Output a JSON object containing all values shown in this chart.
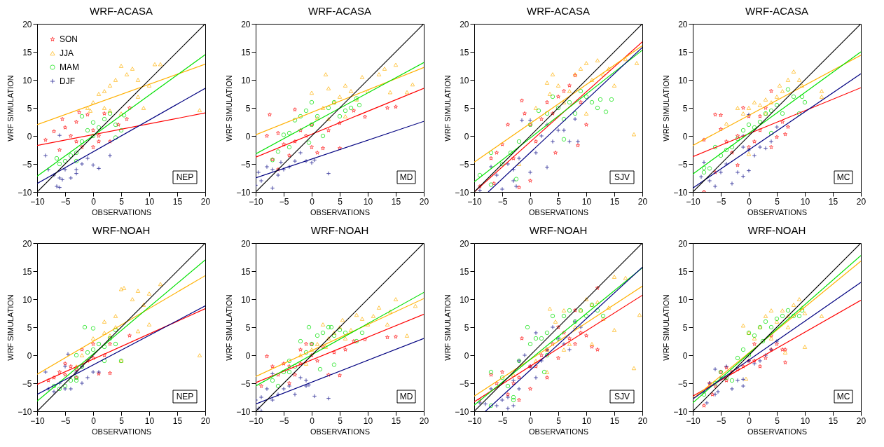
{
  "chart_data": [
    {
      "type": "scatter",
      "title": "WRF-ACASA",
      "xlabel": "OBSERVATIONS",
      "ylabel": "WRF SIMULATION",
      "xlim": [
        -10,
        20
      ],
      "ylim": [
        -10,
        20
      ],
      "xticks": [
        -10,
        -5,
        0,
        5,
        10,
        15,
        20
      ],
      "yticks": [
        -10,
        -5,
        0,
        5,
        10,
        15,
        20
      ],
      "legend": "top left",
      "annotations": [
        "NEP"
      ],
      "series": [
        {
          "name": "SON",
          "color": "#ff0000",
          "marker": "star",
          "x": [
            -8.5,
            -7,
            -5.5,
            -5,
            -4,
            -3,
            -3,
            -2,
            -1,
            0,
            0,
            1,
            2,
            -6,
            3,
            4.5,
            6,
            6.5,
            -2.5,
            1
          ],
          "values": [
            -0.7,
            0.8,
            3,
            1.5,
            0,
            2.5,
            -1,
            -2,
            3.8,
            -2,
            1,
            -1,
            4,
            -2.5,
            -1,
            2,
            3,
            5,
            4.2,
            0
          ]
        },
        {
          "name": "JJA",
          "color": "#ffb000",
          "marker": "triangle",
          "x": [
            -1,
            0,
            1,
            2,
            2,
            3,
            3,
            4,
            5,
            6,
            7,
            8,
            8,
            9,
            10,
            11,
            12,
            19,
            5,
            -0.5
          ],
          "values": [
            5,
            6,
            7.5,
            8,
            5,
            9,
            4.5,
            10,
            12.5,
            11,
            12,
            10,
            7,
            5,
            9,
            12.8,
            12.8,
            4.6,
            4,
            4.5
          ]
        },
        {
          "name": "MAM",
          "color": "#00e000",
          "marker": "circle",
          "x": [
            -6.5,
            -6,
            -5,
            -4,
            -3,
            -2,
            -2,
            -1,
            0,
            1,
            2,
            3,
            4,
            4,
            5,
            5.5,
            -3,
            0
          ],
          "values": [
            -4,
            -5,
            -4.5,
            -3.5,
            -3,
            -1,
            3.5,
            1,
            2.4,
            1.5,
            3,
            4,
            2,
            -0.3,
            1,
            3.7,
            -4.5,
            0
          ]
        },
        {
          "name": "DJF",
          "color": "#000080",
          "marker": "cross",
          "x": [
            -8.5,
            -8,
            -7,
            -6.5,
            -6,
            -5.5,
            -5,
            -4,
            -3,
            -2,
            -1,
            0,
            1,
            3,
            -6,
            -3,
            -6
          ],
          "values": [
            -3.5,
            -6,
            -7,
            -9,
            -7.5,
            -7.8,
            -6,
            -7.5,
            -6,
            -5,
            -4,
            -5.2,
            -5.8,
            -3.5,
            0.1,
            -6.7,
            -9.2
          ]
        },
        {
          "type": "line",
          "color": "#ff0000",
          "x": [
            -10,
            20
          ],
          "values": [
            -1.7,
            4.1
          ]
        },
        {
          "type": "line",
          "color": "#ffb000",
          "x": [
            -10,
            20
          ],
          "values": [
            2,
            12.8
          ]
        },
        {
          "type": "line",
          "color": "#00e000",
          "x": [
            -10,
            20
          ],
          "values": [
            -7.2,
            14.5
          ]
        },
        {
          "type": "line",
          "color": "#000080",
          "x": [
            -10,
            20
          ],
          "values": [
            -8.5,
            8.5
          ]
        },
        {
          "type": "line",
          "color": "#000000",
          "x": [
            -10,
            20
          ],
          "values": [
            -10,
            20
          ]
        }
      ]
    },
    {
      "type": "scatter",
      "title": "WRF-ACASA",
      "xlabel": "OBSERVATIONS",
      "ylabel": "WRF SIMULATION",
      "xlim": [
        -10,
        20
      ],
      "ylim": [
        -10,
        20
      ],
      "xticks": [
        -10,
        -5,
        0,
        5,
        10,
        15,
        20
      ],
      "yticks": [
        -10,
        -5,
        0,
        5,
        10,
        15,
        20
      ],
      "annotations": [
        "MD"
      ],
      "series": [
        {
          "color": "#ff0000",
          "marker": "star",
          "x": [
            -7.5,
            -8,
            -6,
            -5,
            -4,
            -3,
            -3,
            -2,
            -1,
            0,
            0,
            1,
            2,
            3,
            5,
            5,
            7.5,
            9.5,
            13.5,
            15,
            -6,
            -7
          ],
          "values": [
            3.8,
            0,
            0.5,
            -1.5,
            -3.5,
            4.7,
            -1,
            1,
            0,
            2,
            -2,
            -3,
            -2.2,
            1,
            -2.2,
            2.3,
            4.5,
            3.4,
            5,
            5.2,
            -6,
            -4.2
          ]
        },
        {
          "color": "#ffb000",
          "marker": "triangle",
          "x": [
            0,
            1,
            2,
            2.5,
            3,
            4,
            5,
            6,
            7,
            8,
            9,
            10,
            12,
            13,
            15,
            17,
            18,
            14,
            6,
            3
          ],
          "values": [
            7.7,
            3.2,
            5,
            11,
            8.5,
            6,
            7,
            9,
            8,
            6.5,
            10.5,
            8,
            11,
            12,
            12.7,
            7.8,
            9.2,
            7.8,
            3.5,
            3
          ]
        },
        {
          "color": "#00e000",
          "marker": "circle",
          "x": [
            -7,
            -6,
            -5,
            -4,
            -3,
            -2,
            -1,
            0,
            0,
            1,
            2,
            3,
            4,
            5,
            6,
            7,
            8,
            8.5,
            -0.5,
            -4
          ],
          "values": [
            -4.3,
            -2.8,
            0.2,
            0.5,
            2.8,
            3.5,
            4.5,
            6,
            2,
            3.5,
            0,
            5,
            6,
            3.5,
            4.5,
            5,
            6.7,
            5.5,
            -1.2,
            -2
          ]
        },
        {
          "color": "#000080",
          "marker": "cross",
          "x": [
            -10,
            -9.5,
            -9,
            -8,
            -7,
            -7,
            -6,
            -5,
            -4,
            -3,
            -2,
            -1,
            0,
            0.5,
            3,
            -5.5
          ],
          "values": [
            -8.8,
            -6.5,
            -8,
            -5.5,
            -6,
            -9.3,
            -7,
            -6,
            -5.5,
            -4.5,
            -3,
            -4.5,
            -4.8,
            -4.3,
            -6.7,
            -4.7
          ]
        },
        {
          "type": "line",
          "color": "#ff0000",
          "x": [
            -10,
            20
          ],
          "values": [
            -3.8,
            8.5
          ]
        },
        {
          "type": "line",
          "color": "#ffb000",
          "x": [
            -10,
            20
          ],
          "values": [
            0.2,
            12.2
          ]
        },
        {
          "type": "line",
          "color": "#00e000",
          "x": [
            -10,
            20
          ],
          "values": [
            -3.2,
            13.1
          ]
        },
        {
          "type": "line",
          "color": "#000080",
          "x": [
            -10,
            20
          ],
          "values": [
            -7.5,
            2.6
          ]
        },
        {
          "type": "line",
          "color": "#000000",
          "x": [
            -10,
            20
          ],
          "values": [
            -10,
            20
          ]
        }
      ]
    },
    {
      "type": "scatter",
      "title": "WRF-ACASA",
      "xlabel": "OBSERVATIONS",
      "ylabel": "WRF SIMULATION",
      "xlim": [
        -10,
        20
      ],
      "ylim": [
        -10,
        20
      ],
      "xticks": [
        -10,
        -5,
        0,
        5,
        10,
        15,
        20
      ],
      "yticks": [
        -10,
        -5,
        0,
        5,
        10,
        15,
        20
      ],
      "annotations": [
        "SJV"
      ],
      "series": [
        {
          "color": "#ff0000",
          "marker": "star",
          "x": [
            -9,
            -7,
            -6.5,
            -6,
            -5,
            -4,
            -3,
            -1.5,
            -1,
            0,
            0,
            1,
            2,
            3,
            4,
            5,
            6,
            7,
            8,
            9,
            10,
            4.5,
            8.5,
            -2
          ],
          "values": [
            -9,
            -4,
            -8.5,
            -3,
            -1.5,
            2,
            -4,
            6.3,
            4,
            -8,
            2,
            -1,
            3,
            6,
            4,
            7,
            8,
            9,
            10.8,
            6,
            2,
            -3,
            -1.7,
            -9.2
          ]
        },
        {
          "color": "#ffb000",
          "marker": "triangle",
          "x": [
            -2,
            1,
            3,
            3.5,
            4,
            5,
            6,
            7,
            8,
            9,
            10,
            11,
            12,
            13,
            14,
            15,
            17,
            19,
            18.5,
            10
          ],
          "values": [
            -5,
            5,
            9.5,
            7.5,
            11,
            9,
            6,
            8,
            11,
            12,
            13,
            10,
            13.5,
            11,
            12,
            9,
            13.7,
            13,
            0.3,
            4
          ]
        },
        {
          "color": "#00e000",
          "marker": "circle",
          "x": [
            -9,
            -7,
            -7,
            -5,
            -3.5,
            -2.5,
            -2,
            0,
            1.5,
            3,
            4,
            5,
            6,
            7,
            8,
            9,
            10,
            11,
            12,
            12.5,
            13.5,
            14.5,
            6
          ],
          "values": [
            -7,
            -3,
            -8.7,
            -5,
            -3,
            -7.7,
            -1,
            2,
            4.5,
            4,
            7,
            5,
            3,
            6,
            4,
            8,
            7,
            6,
            5,
            6.5,
            4.3,
            6.5,
            -0.6
          ]
        },
        {
          "color": "#000080",
          "marker": "cross",
          "x": [
            -9,
            -7,
            -6,
            -5,
            -4,
            -3,
            -2.5,
            -2,
            0,
            0,
            -1.5,
            1,
            2,
            3,
            4,
            5,
            6,
            7,
            8,
            8.5,
            3,
            -3
          ],
          "values": [
            -9.7,
            -5.5,
            -7,
            -9.5,
            -5,
            -6,
            -9,
            -4,
            -6.5,
            2.8,
            2.8,
            -3,
            0,
            -5.6,
            -1,
            1,
            1,
            -1,
            3,
            -1,
            2,
            -8
          ]
        },
        {
          "type": "line",
          "color": "#ff0000",
          "x": [
            -10,
            20
          ],
          "values": [
            -10,
            16.8
          ]
        },
        {
          "type": "line",
          "color": "#ffb000",
          "x": [
            -10,
            20
          ],
          "values": [
            -4.7,
            16.1
          ]
        },
        {
          "type": "line",
          "color": "#00e000",
          "x": [
            -10,
            20
          ],
          "values": [
            -8.2,
            15.3
          ]
        },
        {
          "type": "line",
          "color": "#000080",
          "x": [
            -7.5,
            20
          ],
          "values": [
            -10,
            15.8
          ]
        },
        {
          "type": "line",
          "color": "#000000",
          "x": [
            -10,
            20
          ],
          "values": [
            -10,
            20
          ]
        }
      ]
    },
    {
      "type": "scatter",
      "title": "WRF-ACASA",
      "xlabel": "OBSERVATIONS",
      "ylabel": "WRF SIMULATION",
      "xlim": [
        -10,
        20
      ],
      "ylim": [
        -10,
        20
      ],
      "xticks": [
        -10,
        -5,
        0,
        5,
        10,
        15,
        20
      ],
      "yticks": [
        -10,
        -5,
        0,
        5,
        10,
        15,
        20
      ],
      "annotations": [
        "MC"
      ],
      "series": [
        {
          "color": "#ff0000",
          "marker": "star",
          "x": [
            -8,
            -8,
            -6,
            -5,
            -5,
            -4,
            -3,
            -2,
            -1,
            0,
            0,
            1,
            2,
            3,
            4,
            4,
            5,
            6,
            7,
            6.5,
            -2,
            -6,
            2
          ],
          "values": [
            -0.7,
            -10,
            3.8,
            3.7,
            1.2,
            -1,
            -3,
            0,
            5,
            -2,
            3.5,
            -1,
            1,
            5,
            -2,
            8,
            -0.2,
            2.5,
            1.6,
            0.3,
            -5.2,
            -6.5,
            3.5
          ]
        },
        {
          "color": "#ffb000",
          "marker": "triangle",
          "x": [
            -2,
            -1,
            0,
            1,
            2,
            3,
            4,
            5,
            5.5,
            6,
            7,
            8,
            9,
            9.5,
            13,
            13,
            0,
            3,
            -4
          ],
          "values": [
            5,
            4,
            5,
            6,
            5.5,
            6.5,
            6,
            7,
            9,
            8,
            10,
            11.5,
            10,
            9,
            8,
            7,
            -3.2,
            4,
            2.2
          ]
        },
        {
          "color": "#00e000",
          "marker": "circle",
          "x": [
            -8,
            -8,
            -7,
            -6,
            -5,
            -4,
            -3,
            -2,
            -1,
            0,
            1,
            2,
            3,
            4,
            5,
            6,
            7,
            8,
            9,
            9.5,
            10,
            4
          ],
          "values": [
            -5.7,
            -6.5,
            -5.8,
            -2,
            -3.5,
            -2.5,
            -2,
            -0.5,
            1,
            2,
            1.5,
            2.5,
            4,
            4.5,
            5.5,
            4,
            8.3,
            7,
            4,
            7,
            6,
            0.5
          ]
        },
        {
          "color": "#000080",
          "marker": "cross",
          "x": [
            -8.5,
            -8,
            -7,
            -6,
            -5,
            -4,
            -3,
            -2,
            -1,
            0,
            -1,
            0,
            1,
            2,
            3,
            4,
            5,
            -1,
            0
          ],
          "values": [
            -7.3,
            -4.7,
            -8,
            -9,
            -6.5,
            -5,
            -8.5,
            -6.5,
            -7.2,
            -6.2,
            -2,
            -2.5,
            -3.5,
            -2,
            -2.2,
            -1,
            1.6,
            0,
            3.8
          ]
        },
        {
          "type": "line",
          "color": "#ff0000",
          "x": [
            -10,
            20
          ],
          "values": [
            -3.7,
            8.6
          ]
        },
        {
          "type": "line",
          "color": "#ffb000",
          "x": [
            -10,
            20
          ],
          "values": [
            -1.7,
            14.4
          ]
        },
        {
          "type": "line",
          "color": "#00e000",
          "x": [
            -10,
            20
          ],
          "values": [
            -6.8,
            15
          ]
        },
        {
          "type": "line",
          "color": "#000080",
          "x": [
            -10,
            20
          ],
          "values": [
            -9.3,
            11.1
          ]
        },
        {
          "type": "line",
          "color": "#000000",
          "x": [
            -10,
            20
          ],
          "values": [
            -10,
            20
          ]
        }
      ]
    },
    {
      "type": "scatter",
      "title": "WRF-NOAH",
      "xlabel": "OBSERVATIONS",
      "ylabel": "WRF SIMULATION",
      "xlim": [
        -10,
        20
      ],
      "ylim": [
        -10,
        20
      ],
      "xticks": [
        -10,
        -5,
        0,
        5,
        10,
        15,
        20
      ],
      "yticks": [
        -10,
        -5,
        0,
        5,
        10,
        15,
        20
      ],
      "annotations": [
        "NEP"
      ],
      "series": [
        {
          "color": "#ff0000",
          "marker": "star",
          "x": [
            -8,
            -7,
            -6,
            -5,
            -4,
            -3,
            -2,
            -1,
            0,
            1,
            2,
            3,
            3,
            6.5,
            -3,
            0,
            -5
          ],
          "values": [
            -4.5,
            -4,
            -3,
            -3.5,
            -2,
            -2.5,
            1,
            -1,
            2,
            -3.3,
            0,
            -3.2,
            2,
            3.5,
            -4,
            -0.5,
            -1.5
          ]
        },
        {
          "color": "#ffb000",
          "marker": "triangle",
          "x": [
            -3,
            -2,
            0,
            2,
            3,
            4,
            4,
            5,
            5.5,
            7,
            8,
            9,
            10,
            12,
            10,
            8,
            19,
            5,
            2
          ],
          "values": [
            -2,
            0,
            3,
            4,
            3.5,
            7,
            5,
            11.8,
            12,
            10,
            11.5,
            9,
            11,
            12.7,
            5.5,
            4.3,
            0,
            -1,
            6
          ]
        },
        {
          "color": "#00e000",
          "marker": "circle",
          "x": [
            -7,
            -6,
            -5,
            -4,
            -3,
            -3,
            -2,
            -1,
            -1.5,
            0,
            0,
            1,
            2,
            3,
            4,
            4,
            5,
            2,
            -3
          ],
          "values": [
            -5.5,
            -6,
            -5.5,
            -4.5,
            -4,
            -4.5,
            -2,
            0.5,
            5,
            4.8,
            1,
            2,
            1.5,
            3,
            2,
            4.5,
            -1,
            -1,
            0
          ]
        },
        {
          "color": "#000080",
          "marker": "cross",
          "x": [
            -8.5,
            -8,
            -7,
            -6,
            -5,
            -4.5,
            -4,
            -3,
            -2,
            -1,
            -2,
            0,
            1,
            -5
          ],
          "values": [
            -3,
            -6,
            -6.5,
            -5,
            -6,
            0.2,
            -6,
            -3,
            -5,
            -4,
            -2,
            -3,
            -3,
            -2
          ]
        },
        {
          "type": "line",
          "color": "#ff0000",
          "x": [
            -10,
            20
          ],
          "values": [
            -5.2,
            8.3
          ]
        },
        {
          "type": "line",
          "color": "#ffb000",
          "x": [
            -10,
            20
          ],
          "values": [
            -3.4,
            14.2
          ]
        },
        {
          "type": "line",
          "color": "#00e000",
          "x": [
            -10,
            20
          ],
          "values": [
            -8.2,
            17
          ]
        },
        {
          "type": "line",
          "color": "#000080",
          "x": [
            -10,
            20
          ],
          "values": [
            -7,
            8.8
          ]
        },
        {
          "type": "line",
          "color": "#000000",
          "x": [
            -10,
            20
          ],
          "values": [
            -10,
            20
          ]
        }
      ]
    },
    {
      "type": "scatter",
      "title": "WRF-NOAH",
      "xlabel": "OBSERVATIONS",
      "ylabel": "WRF SIMULATION",
      "xlim": [
        -10,
        20
      ],
      "ylim": [
        -10,
        20
      ],
      "xticks": [
        -10,
        -5,
        0,
        5,
        10,
        15,
        20
      ],
      "yticks": [
        -10,
        -5,
        0,
        5,
        10,
        15,
        20
      ],
      "annotations": [
        "MD"
      ],
      "series": [
        {
          "color": "#ff0000",
          "marker": "star",
          "x": [
            -9,
            -8,
            -7,
            -6,
            -5,
            -4,
            -3,
            -2,
            -1,
            0,
            1,
            2,
            3,
            4,
            5,
            6,
            7.5,
            9.5,
            13.5,
            15,
            -4,
            0,
            -2
          ],
          "values": [
            -5.5,
            -0.2,
            -2,
            -3.5,
            -1.5,
            -2,
            -3.5,
            1,
            2,
            0,
            -1,
            1.5,
            -3.5,
            0.5,
            -3.6,
            1,
            2.5,
            2.8,
            3.2,
            3.3,
            -5,
            2,
            -1.5
          ]
        },
        {
          "color": "#ffb000",
          "marker": "triangle",
          "x": [
            -2,
            0,
            1,
            2,
            3,
            4,
            5,
            5.5,
            6,
            7,
            8,
            9,
            10,
            11,
            12,
            13.5,
            14,
            15,
            17,
            18.5,
            2.5,
            -1
          ],
          "values": [
            0,
            1,
            2,
            5.5,
            3,
            4,
            5,
            6.3,
            3,
            4.5,
            7.2,
            6.5,
            5.5,
            7,
            8.5,
            5.5,
            7.8,
            10,
            3.5,
            8.8,
            1.5,
            -1.5
          ]
        },
        {
          "color": "#00e000",
          "marker": "circle",
          "x": [
            -7,
            -6,
            -5,
            -4,
            -3,
            -2,
            -1,
            -0.5,
            0,
            1,
            2,
            3,
            3.5,
            4,
            4,
            5,
            6,
            8,
            9,
            -4,
            1.5
          ],
          "values": [
            -4.5,
            -5.5,
            -3,
            -3,
            -2,
            2.5,
            0.5,
            5,
            2,
            3.5,
            4,
            5,
            5,
            3.5,
            -1.7,
            4.5,
            4,
            2.5,
            4,
            -1,
            -2.5
          ]
        },
        {
          "color": "#000080",
          "marker": "cross",
          "x": [
            -10,
            -9.5,
            -9,
            -8,
            -7,
            -7,
            -6,
            -5,
            -4,
            -3,
            -2,
            -1,
            -1,
            -0.5,
            0.5,
            3,
            -9
          ],
          "values": [
            -8,
            -9.5,
            -7.5,
            -6,
            -8,
            -3.3,
            -7,
            -6,
            -5.5,
            -7,
            -4,
            -5.5,
            -4.5,
            -5.3,
            -7.3,
            -7.7,
            -10
          ]
        },
        {
          "type": "line",
          "color": "#ff0000",
          "x": [
            -10,
            20
          ],
          "values": [
            -4.9,
            7.3
          ]
        },
        {
          "type": "line",
          "color": "#ffb000",
          "x": [
            -10,
            20
          ],
          "values": [
            -3.8,
            10.1
          ]
        },
        {
          "type": "line",
          "color": "#00e000",
          "x": [
            -10,
            20
          ],
          "values": [
            -5.5,
            11.2
          ]
        },
        {
          "type": "line",
          "color": "#000080",
          "x": [
            -10,
            20
          ],
          "values": [
            -8.7,
            3
          ]
        },
        {
          "type": "line",
          "color": "#000000",
          "x": [
            -10,
            20
          ],
          "values": [
            -10,
            20
          ]
        }
      ]
    },
    {
      "type": "scatter",
      "title": "WRF-NOAH",
      "xlabel": "OBSERVATIONS",
      "ylabel": "WRF SIMULATION",
      "xlim": [
        -10,
        20
      ],
      "ylim": [
        -10,
        20
      ],
      "xticks": [
        -10,
        -5,
        0,
        5,
        10,
        15,
        20
      ],
      "yticks": [
        -10,
        -5,
        0,
        5,
        10,
        15,
        20
      ],
      "annotations": [
        "SJV"
      ],
      "series": [
        {
          "color": "#ff0000",
          "marker": "star",
          "x": [
            -9,
            -7,
            -6,
            -5,
            -4,
            -3,
            -2,
            -2,
            -1.5,
            0,
            0,
            1,
            2,
            3,
            4,
            5,
            6,
            7,
            8,
            9,
            10,
            11,
            12,
            8,
            12,
            5,
            3
          ],
          "values": [
            -8,
            -3.5,
            -5,
            -3,
            -7,
            -5,
            -8,
            -4,
            3,
            -6,
            -2,
            -2,
            0,
            1,
            2,
            5,
            4,
            3,
            2,
            4,
            3.5,
            1.5,
            1,
            8,
            12,
            -0.5,
            -4
          ]
        },
        {
          "color": "#ffb000",
          "marker": "triangle",
          "x": [
            -3,
            1,
            3,
            3.5,
            4.5,
            6,
            6,
            7,
            8,
            9,
            10,
            11,
            12,
            13,
            14,
            15,
            15,
            17,
            19.5,
            18.5,
            11,
            3
          ],
          "values": [
            -3.5,
            -1,
            1,
            8.3,
            6,
            8,
            1,
            2,
            5,
            8,
            10,
            9,
            9.5,
            6.5,
            8.5,
            4.5,
            14,
            13.8,
            7.2,
            -2.3,
            2,
            -3
          ]
        },
        {
          "color": "#00e000",
          "marker": "circle",
          "x": [
            -7,
            -7,
            -5,
            -4,
            -3,
            -3,
            -2,
            -0.5,
            0,
            1,
            2,
            3,
            4,
            5,
            6,
            7,
            8,
            9,
            10,
            11,
            12,
            13,
            3,
            2.5
          ],
          "values": [
            -3,
            -9,
            -4,
            -5.5,
            -7.5,
            -8,
            -1,
            5,
            2,
            3,
            3,
            4,
            7,
            3,
            7,
            8,
            6,
            8,
            7,
            9,
            8,
            7,
            0,
            -3
          ]
        },
        {
          "color": "#000080",
          "marker": "cross",
          "x": [
            -9,
            -8,
            -7,
            -6,
            -5,
            -4,
            -3,
            -3,
            -2,
            -1,
            0,
            1,
            2,
            3,
            4,
            5,
            6,
            7,
            8,
            9,
            -2,
            1,
            -4
          ],
          "values": [
            -8.5,
            -8.7,
            -6,
            -9,
            -8,
            -9.5,
            -4.5,
            -9,
            -1,
            0,
            -2,
            4,
            -1,
            1,
            5,
            3,
            2,
            1,
            6,
            5,
            -6,
            -4,
            -7.5
          ]
        },
        {
          "type": "line",
          "color": "#ff0000",
          "x": [
            -10,
            20
          ],
          "values": [
            -8.3,
            10.7
          ]
        },
        {
          "type": "line",
          "color": "#ffb000",
          "x": [
            -10,
            20
          ],
          "values": [
            -7.3,
            12.3
          ]
        },
        {
          "type": "line",
          "color": "#00e000",
          "x": [
            -10,
            20
          ],
          "values": [
            -8.9,
            15.6
          ]
        },
        {
          "type": "line",
          "color": "#000080",
          "x": [
            -8,
            20
          ],
          "values": [
            -10,
            15.7
          ]
        },
        {
          "type": "line",
          "color": "#000000",
          "x": [
            -10,
            20
          ],
          "values": [
            -10,
            20
          ]
        }
      ]
    },
    {
      "type": "scatter",
      "title": "WRF-NOAH",
      "xlabel": "OBSERVATIONS",
      "ylabel": "WRF SIMULATION",
      "xlim": [
        -10,
        20
      ],
      "ylim": [
        -10,
        20
      ],
      "xticks": [
        -10,
        -5,
        0,
        5,
        10,
        15,
        20
      ],
      "yticks": [
        -10,
        -5,
        0,
        5,
        10,
        15,
        20
      ],
      "annotations": [
        "MC"
      ],
      "series": [
        {
          "color": "#ff0000",
          "marker": "star",
          "x": [
            -8,
            -7,
            -6,
            -5,
            -4,
            -3,
            -2,
            -1,
            0,
            1,
            2,
            3,
            4,
            4,
            5,
            6,
            6.5,
            6.5,
            -6.5,
            1,
            -4
          ],
          "values": [
            -9,
            -5,
            -5.5,
            -3,
            -4.5,
            -3,
            -2.5,
            -2,
            -1,
            -1,
            -2,
            -0.5,
            1,
            3.5,
            2,
            1,
            -1.3,
            1,
            -7,
            2,
            -2.2
          ]
        },
        {
          "color": "#ffb000",
          "marker": "triangle",
          "x": [
            -1,
            0,
            1,
            2,
            3,
            4,
            5,
            6,
            7,
            8,
            9,
            9.5,
            10,
            10,
            13,
            6.5,
            -0.5,
            4,
            7
          ],
          "values": [
            5.3,
            4,
            3,
            5,
            7,
            8,
            6,
            8,
            7,
            9,
            10,
            8.5,
            7.5,
            1.5,
            7,
            0.5,
            -4.2,
            3,
            5
          ]
        },
        {
          "color": "#00e000",
          "marker": "circle",
          "x": [
            -8,
            -6,
            -5,
            -4,
            -3,
            -1,
            0,
            0,
            1,
            2,
            2.5,
            3,
            4,
            5,
            6,
            7,
            8,
            9,
            9.5,
            -2
          ],
          "values": [
            -7,
            -5,
            -3,
            -4,
            -4.5,
            1,
            4,
            0,
            3.5,
            5,
            2.5,
            6,
            5,
            6.5,
            7,
            8,
            7,
            7,
            8,
            -0.5
          ]
        },
        {
          "color": "#000080",
          "marker": "cross",
          "x": [
            -8,
            -7.5,
            -7,
            -6,
            -5.5,
            -5,
            -4,
            -3,
            -2,
            -1,
            -1,
            0,
            1,
            2,
            3,
            4,
            5,
            -6
          ],
          "values": [
            -6.5,
            -8.5,
            -5,
            -2.5,
            -6.5,
            -4,
            -2,
            -6,
            -4.5,
            -5.5,
            -4.3,
            -1,
            -1.5,
            -1,
            0,
            1,
            2.5,
            -7
          ]
        },
        {
          "type": "line",
          "color": "#ff0000",
          "x": [
            -10,
            20
          ],
          "values": [
            -7.3,
            9.8
          ]
        },
        {
          "type": "line",
          "color": "#ffb000",
          "x": [
            -10,
            20
          ],
          "values": [
            -7.8,
            16.8
          ]
        },
        {
          "type": "line",
          "color": "#00e000",
          "x": [
            -10,
            20
          ],
          "values": [
            -8.5,
            17.8
          ]
        },
        {
          "type": "line",
          "color": "#000080",
          "x": [
            -10,
            20
          ],
          "values": [
            -7.8,
            13
          ]
        },
        {
          "type": "line",
          "color": "#000000",
          "x": [
            -10,
            20
          ],
          "values": [
            -10,
            20
          ]
        }
      ]
    }
  ]
}
